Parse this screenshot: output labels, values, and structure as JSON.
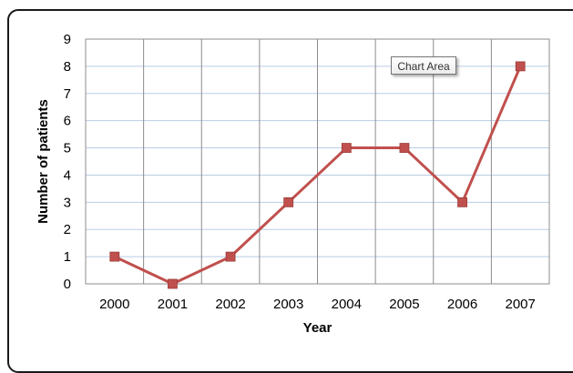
{
  "tooltip": {
    "label": "Chart Area"
  },
  "chart_data": {
    "type": "line",
    "title": "",
    "xlabel": "Year",
    "ylabel": "Number of patients",
    "categories": [
      "2000",
      "2001",
      "2002",
      "2003",
      "2004",
      "2005",
      "2006",
      "2007"
    ],
    "series": [
      {
        "values": [
          1,
          0,
          1,
          3,
          5,
          5,
          3,
          8
        ]
      }
    ],
    "ylim": [
      0,
      9
    ],
    "yticks": [
      "0",
      "1",
      "2",
      "3",
      "4",
      "5",
      "6",
      "7",
      "8",
      "9"
    ],
    "grid": true,
    "legend": "none",
    "colors": {
      "line": "#c0504d",
      "marker": "#c0504d",
      "grid_h": "#b9cde5",
      "grid_v": "#8c8c8c",
      "plot_border": "#8c8c8c"
    }
  }
}
